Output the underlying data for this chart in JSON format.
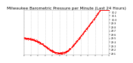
{
  "title": "Milwaukee Barometric Pressure per Minute (Last 24 Hours)",
  "title_fontsize": 4.2,
  "background_color": "#ffffff",
  "plot_bg_color": "#ffffff",
  "line_color": "#ff0000",
  "markersize": 0.8,
  "ylim": [
    29.05,
    30.25
  ],
  "ytick_values": [
    29.1,
    29.2,
    29.3,
    29.4,
    29.5,
    29.6,
    29.7,
    29.8,
    29.9,
    30.0,
    30.1,
    30.2
  ],
  "ytick_fontsize": 2.5,
  "grid_color": "#bbbbbb",
  "grid_linestyle": ":",
  "grid_linewidth": 0.5,
  "n_points": 1440,
  "x_tick_count": 13,
  "xtick_fontsize": 2.2,
  "spine_color": "#888888",
  "spine_linewidth": 0.3
}
